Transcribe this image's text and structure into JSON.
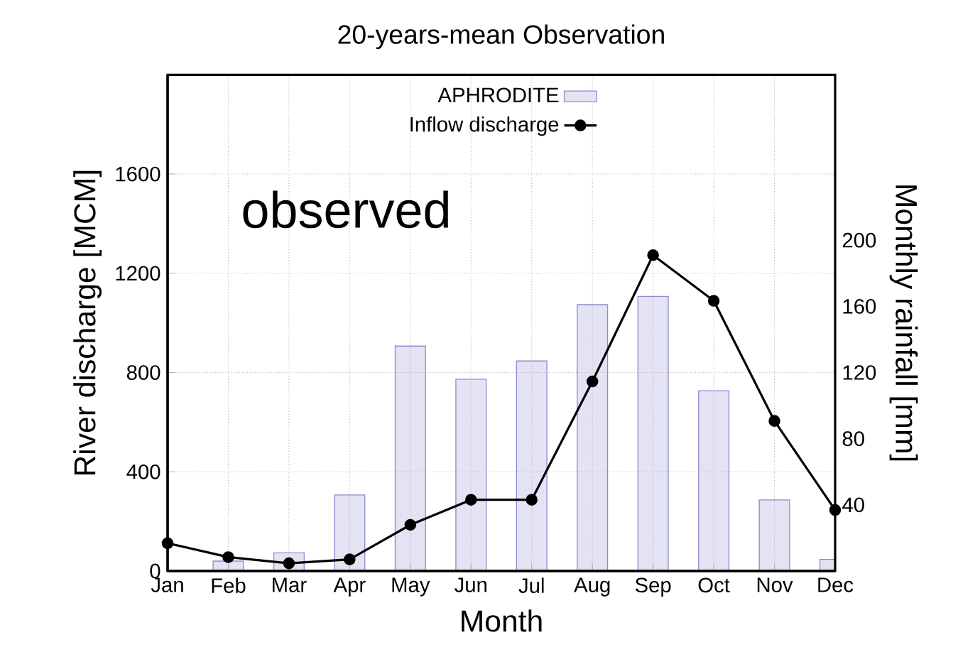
{
  "chart_data": {
    "type": "line",
    "title": "20-years-mean Observation",
    "xlabel": "Month",
    "ylabel": "River discharge [MCM]",
    "y2label": "Monthly rainfall [mm]",
    "categories": [
      "Jan",
      "Feb",
      "Mar",
      "Apr",
      "May",
      "Jun",
      "Jul",
      "Aug",
      "Sep",
      "Oct",
      "Nov",
      "Dec"
    ],
    "series": [
      {
        "name": "APHRODITE",
        "type": "bar",
        "axis": "y2",
        "color": "#e3e3f3",
        "values": [
          null,
          6,
          11,
          46,
          136,
          116,
          127,
          161,
          166,
          109,
          43,
          7
        ]
      },
      {
        "name": "Inflow discharge",
        "color": "#000000",
        "values": [
          112,
          56,
          31,
          47,
          186,
          287,
          287,
          764,
          1273,
          1089,
          605,
          246
        ]
      }
    ],
    "ylim": [
      0,
      2000
    ],
    "yticks": [
      0,
      400,
      800,
      1200,
      1600
    ],
    "y2lim": [
      0,
      300
    ],
    "y2ticks": [
      40,
      80,
      120,
      160,
      200
    ],
    "grid": true,
    "legend": "top",
    "marker": "circle",
    "line_style": "solid",
    "annotations": [
      "observed"
    ]
  }
}
